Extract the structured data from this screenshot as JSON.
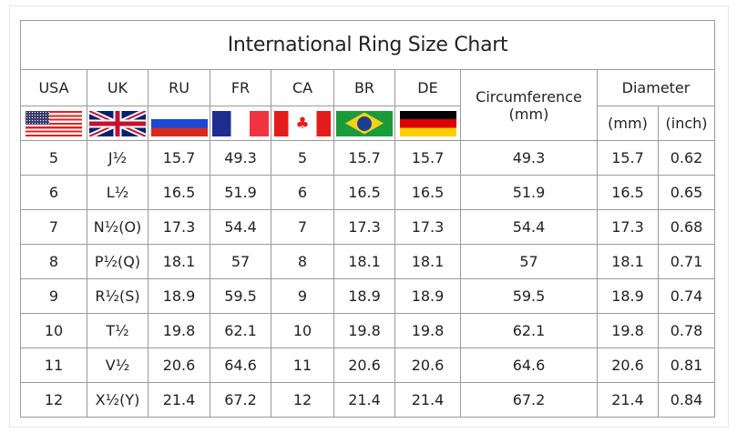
{
  "title": "International Ring Size Chart",
  "headers": {
    "usa": "USA",
    "uk": "UK",
    "ru": "RU",
    "fr": "FR",
    "ca": "CA",
    "br": "BR",
    "de": "DE",
    "circumference": "Circumference",
    "circumference_unit": "(mm)",
    "diameter": "Diameter",
    "diameter_mm": "(mm)",
    "diameter_inch": "(inch)"
  },
  "flags": [
    "us-flag",
    "uk-flag",
    "russia-flag",
    "france-flag",
    "canada-flag",
    "brazil-flag",
    "germany-flag"
  ],
  "rows": [
    [
      "5",
      "J½",
      "15.7",
      "49.3",
      "5",
      "15.7",
      "15.7",
      "49.3",
      "15.7",
      "0.62"
    ],
    [
      "6",
      "L½",
      "16.5",
      "51.9",
      "6",
      "16.5",
      "16.5",
      "51.9",
      "16.5",
      "0.65"
    ],
    [
      "7",
      "N½(O)",
      "17.3",
      "54.4",
      "7",
      "17.3",
      "17.3",
      "54.4",
      "17.3",
      "0.68"
    ],
    [
      "8",
      "P½(Q)",
      "18.1",
      "57",
      "8",
      "18.1",
      "18.1",
      "57",
      "18.1",
      "0.71"
    ],
    [
      "9",
      "R½(S)",
      "18.9",
      "59.5",
      "9",
      "18.9",
      "18.9",
      "59.5",
      "18.9",
      "0.74"
    ],
    [
      "10",
      "T½",
      "19.8",
      "62.1",
      "10",
      "19.8",
      "19.8",
      "62.1",
      "19.8",
      "0.78"
    ],
    [
      "11",
      "V½",
      "20.6",
      "64.6",
      "11",
      "20.6",
      "20.6",
      "64.6",
      "20.6",
      "0.81"
    ],
    [
      "12",
      "X½(Y)",
      "21.4",
      "67.2",
      "12",
      "21.4",
      "21.4",
      "67.2",
      "21.4",
      "0.84"
    ]
  ]
}
